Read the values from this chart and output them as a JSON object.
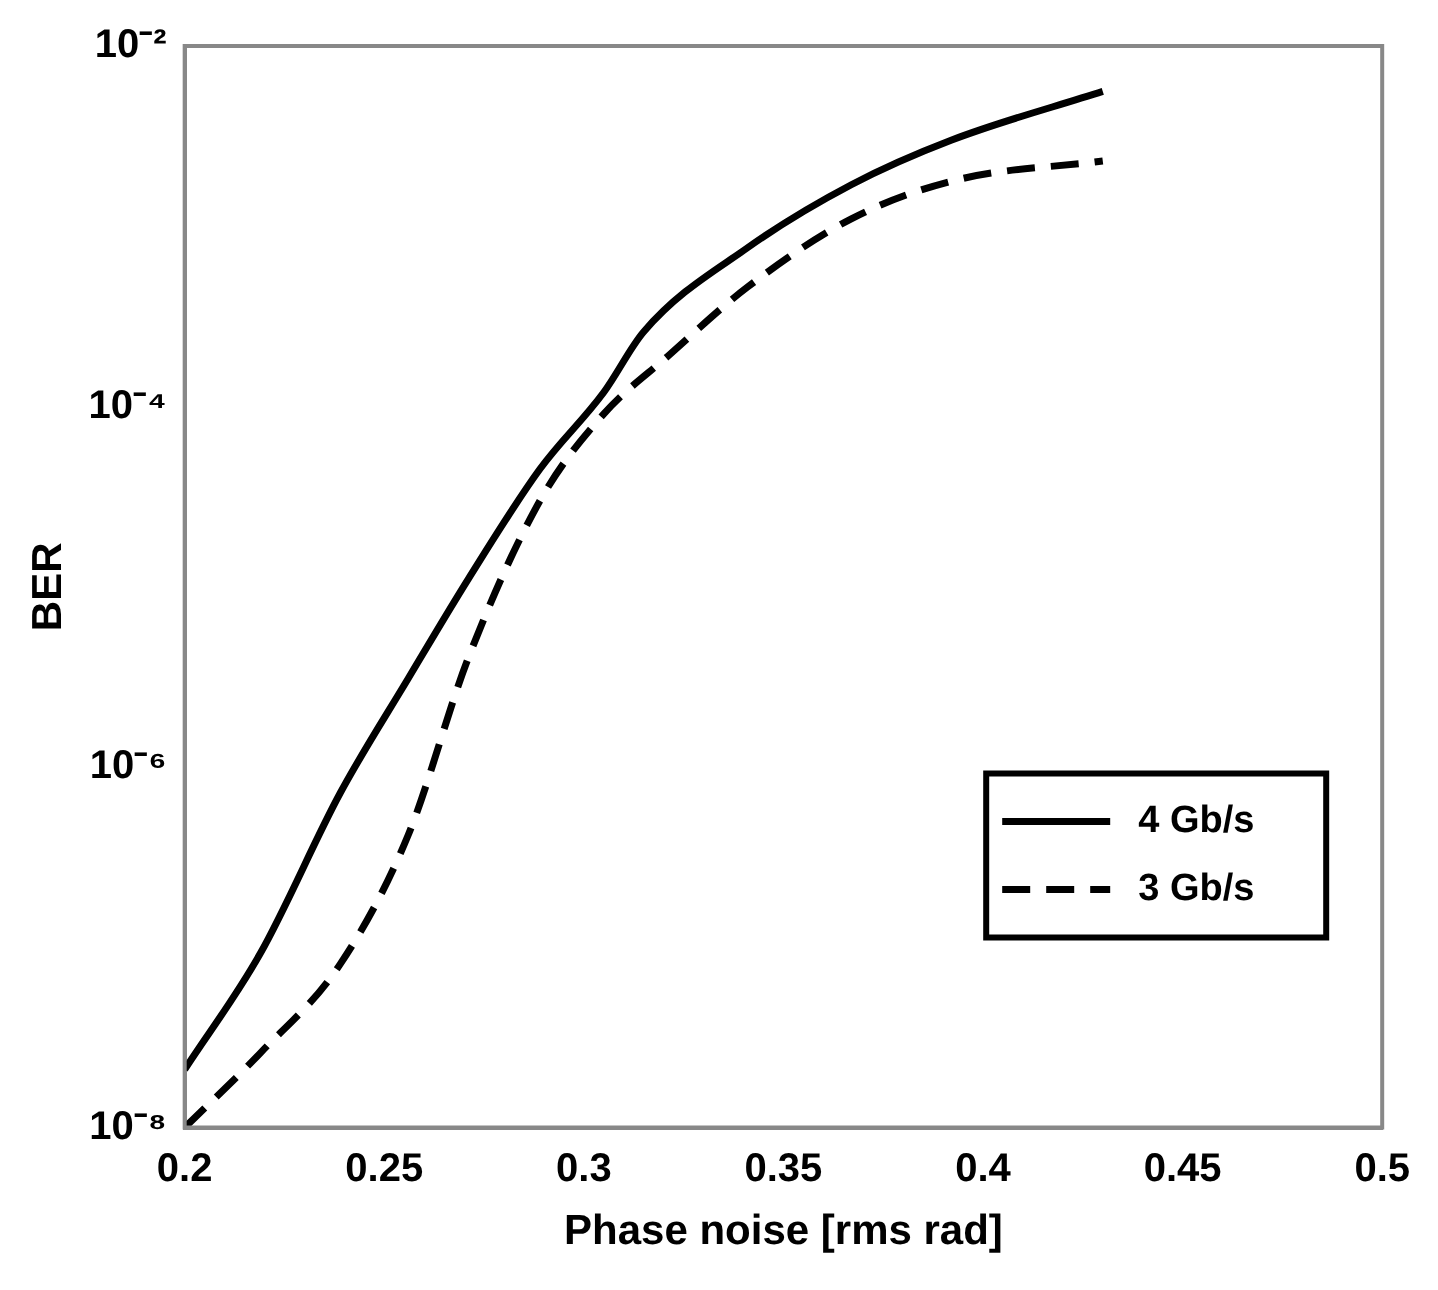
{
  "chart_data": {
    "type": "line",
    "xlabel": "Phase noise [rms rad]",
    "ylabel": "BER",
    "log": "y",
    "xlim": [
      0.2,
      0.5
    ],
    "xticks": [
      0.2,
      0.25,
      0.3,
      0.35,
      0.4,
      0.45,
      0.5
    ],
    "ylim": [
      1e-08,
      0.01
    ],
    "yticks": [
      {
        "value": 1e-08,
        "label": "10⁻⁸"
      },
      {
        "value": 1e-06,
        "label": "10⁻⁶"
      },
      {
        "value": 0.0001,
        "label": "10⁻⁴"
      },
      {
        "value": 0.01,
        "label": "10⁻²"
      }
    ],
    "grid": false,
    "legend": "bottom right",
    "marker": "none",
    "series": [
      {
        "name": "4 Gb/s",
        "color": "#000000",
        "line_style": "solid",
        "x": [
          0.2,
          0.219,
          0.239,
          0.256,
          0.271,
          0.289,
          0.305,
          0.315,
          0.341,
          0.367,
          0.392,
          0.43
        ],
        "values": [
          2.1e-08,
          9.3e-08,
          7.2e-07,
          3.1e-06,
          1.1e-05,
          4.5e-05,
          0.00012,
          0.00026,
          0.00076,
          0.0017,
          0.003,
          0.0056
        ]
      },
      {
        "name": "3 Gb/s",
        "color": "#000000",
        "line_style": "dashed",
        "x": [
          0.2,
          0.219,
          0.239,
          0.256,
          0.271,
          0.289,
          0.305,
          0.321,
          0.341,
          0.367,
          0.393,
          0.43
        ],
        "values": [
          1e-08,
          2.6e-08,
          8.1e-08,
          4.2e-07,
          4e-06,
          3e-05,
          9.1e-05,
          0.00019,
          0.00046,
          0.0011,
          0.0018,
          0.0023
        ]
      }
    ]
  }
}
